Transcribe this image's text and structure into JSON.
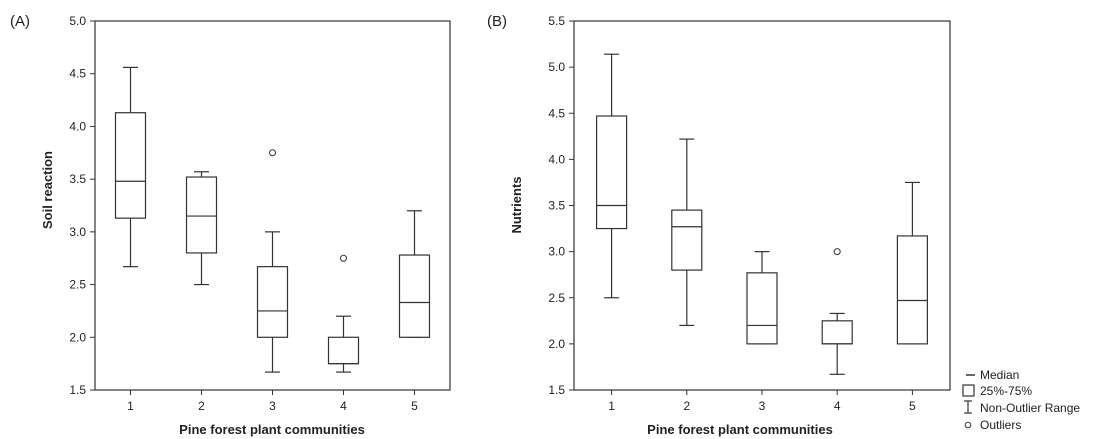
{
  "chart_data": [
    {
      "type": "boxplot",
      "panel_label": "(A)",
      "xlabel": "Pine forest plant communities",
      "ylabel": "Soil reaction",
      "ylim": [
        1.5,
        5.0
      ],
      "yticks": [
        "1.5",
        "2.0",
        "2.5",
        "3.0",
        "3.5",
        "4.0",
        "4.5",
        "5.0"
      ],
      "categories": [
        "1",
        "2",
        "3",
        "4",
        "5"
      ],
      "boxes": [
        {
          "min": 2.67,
          "q1": 3.13,
          "median": 3.48,
          "q3": 4.13,
          "max": 4.56,
          "outliers": []
        },
        {
          "min": 2.5,
          "q1": 2.8,
          "median": 3.15,
          "q3": 3.52,
          "max": 3.57,
          "outliers": []
        },
        {
          "min": 1.67,
          "q1": 2.0,
          "median": 2.25,
          "q3": 2.67,
          "max": 3.0,
          "outliers": [
            3.75
          ]
        },
        {
          "min": 1.67,
          "q1": 1.75,
          "median": 1.75,
          "q3": 2.0,
          "max": 2.2,
          "outliers": [
            2.75
          ]
        },
        {
          "min": 2.0,
          "q1": 2.0,
          "median": 2.33,
          "q3": 2.78,
          "max": 3.2,
          "outliers": []
        }
      ]
    },
    {
      "type": "boxplot",
      "panel_label": "(B)",
      "xlabel": "Pine forest plant communities",
      "ylabel": "Nutrients",
      "ylim": [
        1.5,
        5.5
      ],
      "yticks": [
        "1.5",
        "2.0",
        "2.5",
        "3.0",
        "3.5",
        "4.0",
        "4.5",
        "5.0",
        "5.5"
      ],
      "categories": [
        "1",
        "2",
        "3",
        "4",
        "5"
      ],
      "boxes": [
        {
          "min": 2.5,
          "q1": 3.25,
          "median": 3.5,
          "q3": 4.47,
          "max": 5.14,
          "outliers": []
        },
        {
          "min": 2.2,
          "q1": 2.8,
          "median": 3.27,
          "q3": 3.45,
          "max": 4.22,
          "outliers": []
        },
        {
          "min": 2.0,
          "q1": 2.0,
          "median": 2.2,
          "q3": 2.77,
          "max": 3.0,
          "outliers": []
        },
        {
          "min": 1.67,
          "q1": 2.0,
          "median": 2.0,
          "q3": 2.25,
          "max": 2.33,
          "outliers": [
            3.0
          ]
        },
        {
          "min": 2.0,
          "q1": 2.0,
          "median": 2.47,
          "q3": 3.17,
          "max": 3.75,
          "outliers": []
        }
      ]
    }
  ],
  "legend": {
    "median": "Median",
    "box": "25%-75%",
    "range": "Non-Outlier Range",
    "outliers": "Outliers"
  },
  "colors": {
    "stroke": "#333333",
    "background": "#ffffff"
  }
}
